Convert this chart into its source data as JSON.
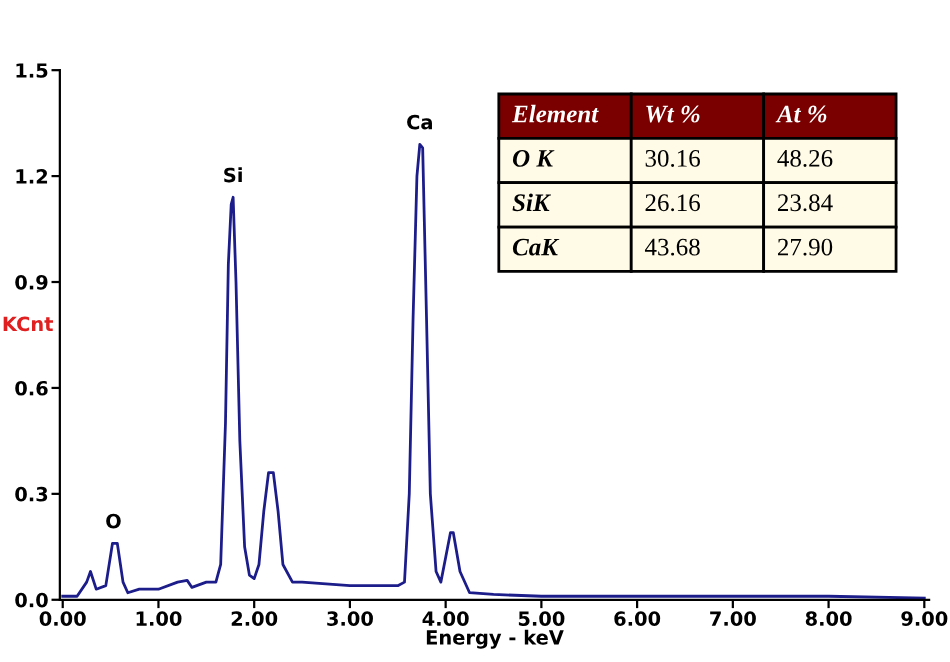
{
  "chart_data": {
    "type": "line",
    "xlabel": "Energy - keV",
    "ylabel": "KCnt",
    "x": [
      0.0,
      0.15,
      0.25,
      0.29,
      0.35,
      0.45,
      0.52,
      0.57,
      0.63,
      0.68,
      0.8,
      1.0,
      1.2,
      1.3,
      1.35,
      1.5,
      1.6,
      1.65,
      1.7,
      1.73,
      1.76,
      1.78,
      1.81,
      1.85,
      1.9,
      1.95,
      2.0,
      2.05,
      2.1,
      2.15,
      2.2,
      2.25,
      2.3,
      2.4,
      2.5,
      3.0,
      3.5,
      3.57,
      3.62,
      3.66,
      3.7,
      3.73,
      3.76,
      3.8,
      3.84,
      3.9,
      3.95,
      4.0,
      4.05,
      4.08,
      4.15,
      4.25,
      4.5,
      5.0,
      6.0,
      7.0,
      8.0,
      9.0
    ],
    "series": [
      {
        "color": "#1c1c8a",
        "values": [
          0.01,
          0.01,
          0.05,
          0.08,
          0.03,
          0.04,
          0.16,
          0.16,
          0.05,
          0.02,
          0.03,
          0.03,
          0.05,
          0.055,
          0.035,
          0.05,
          0.05,
          0.1,
          0.5,
          0.95,
          1.12,
          1.14,
          0.9,
          0.45,
          0.15,
          0.07,
          0.06,
          0.1,
          0.25,
          0.36,
          0.36,
          0.25,
          0.1,
          0.05,
          0.05,
          0.04,
          0.04,
          0.05,
          0.3,
          0.8,
          1.2,
          1.29,
          1.28,
          0.8,
          0.3,
          0.08,
          0.05,
          0.12,
          0.19,
          0.19,
          0.08,
          0.02,
          0.015,
          0.01,
          0.01,
          0.01,
          0.01,
          0.005
        ]
      }
    ],
    "xlim": [
      -0.03,
      9.05
    ],
    "ylim": [
      0,
      1.5
    ],
    "xticks": [
      {
        "value": 0,
        "label": "0.00"
      },
      {
        "value": 1,
        "label": "1.00"
      },
      {
        "value": 2,
        "label": "2.00"
      },
      {
        "value": 3,
        "label": "3.00"
      },
      {
        "value": 4,
        "label": "4.00"
      },
      {
        "value": 5,
        "label": "5.00"
      },
      {
        "value": 6,
        "label": "6.00"
      },
      {
        "value": 7,
        "label": "7.00"
      },
      {
        "value": 8,
        "label": "8.00"
      },
      {
        "value": 9,
        "label": "9.00"
      }
    ],
    "yticks": [
      {
        "value": 0,
        "label": "0.0"
      },
      {
        "value": 0.3,
        "label": "0.3"
      },
      {
        "value": 0.6,
        "label": "0.6"
      },
      {
        "value": 0.9,
        "label": "0.9"
      },
      {
        "value": 1.2,
        "label": "1.2"
      },
      {
        "value": 1.5,
        "label": "1.5"
      }
    ],
    "grid": false,
    "marker": "none",
    "line_style": "solid",
    "annotations": [
      {
        "text": "O",
        "x": 0.53,
        "y": 0.16
      },
      {
        "text": "Si",
        "x": 1.78,
        "y": 1.14
      },
      {
        "text": "Ca",
        "x": 3.73,
        "y": 1.29
      },
      "Element",
      "Wt %",
      "At %",
      "O K",
      "30.16",
      "48.26",
      "SiK",
      "26.16",
      "23.84",
      "CaK",
      "43.68",
      "27.90"
    ]
  }
}
